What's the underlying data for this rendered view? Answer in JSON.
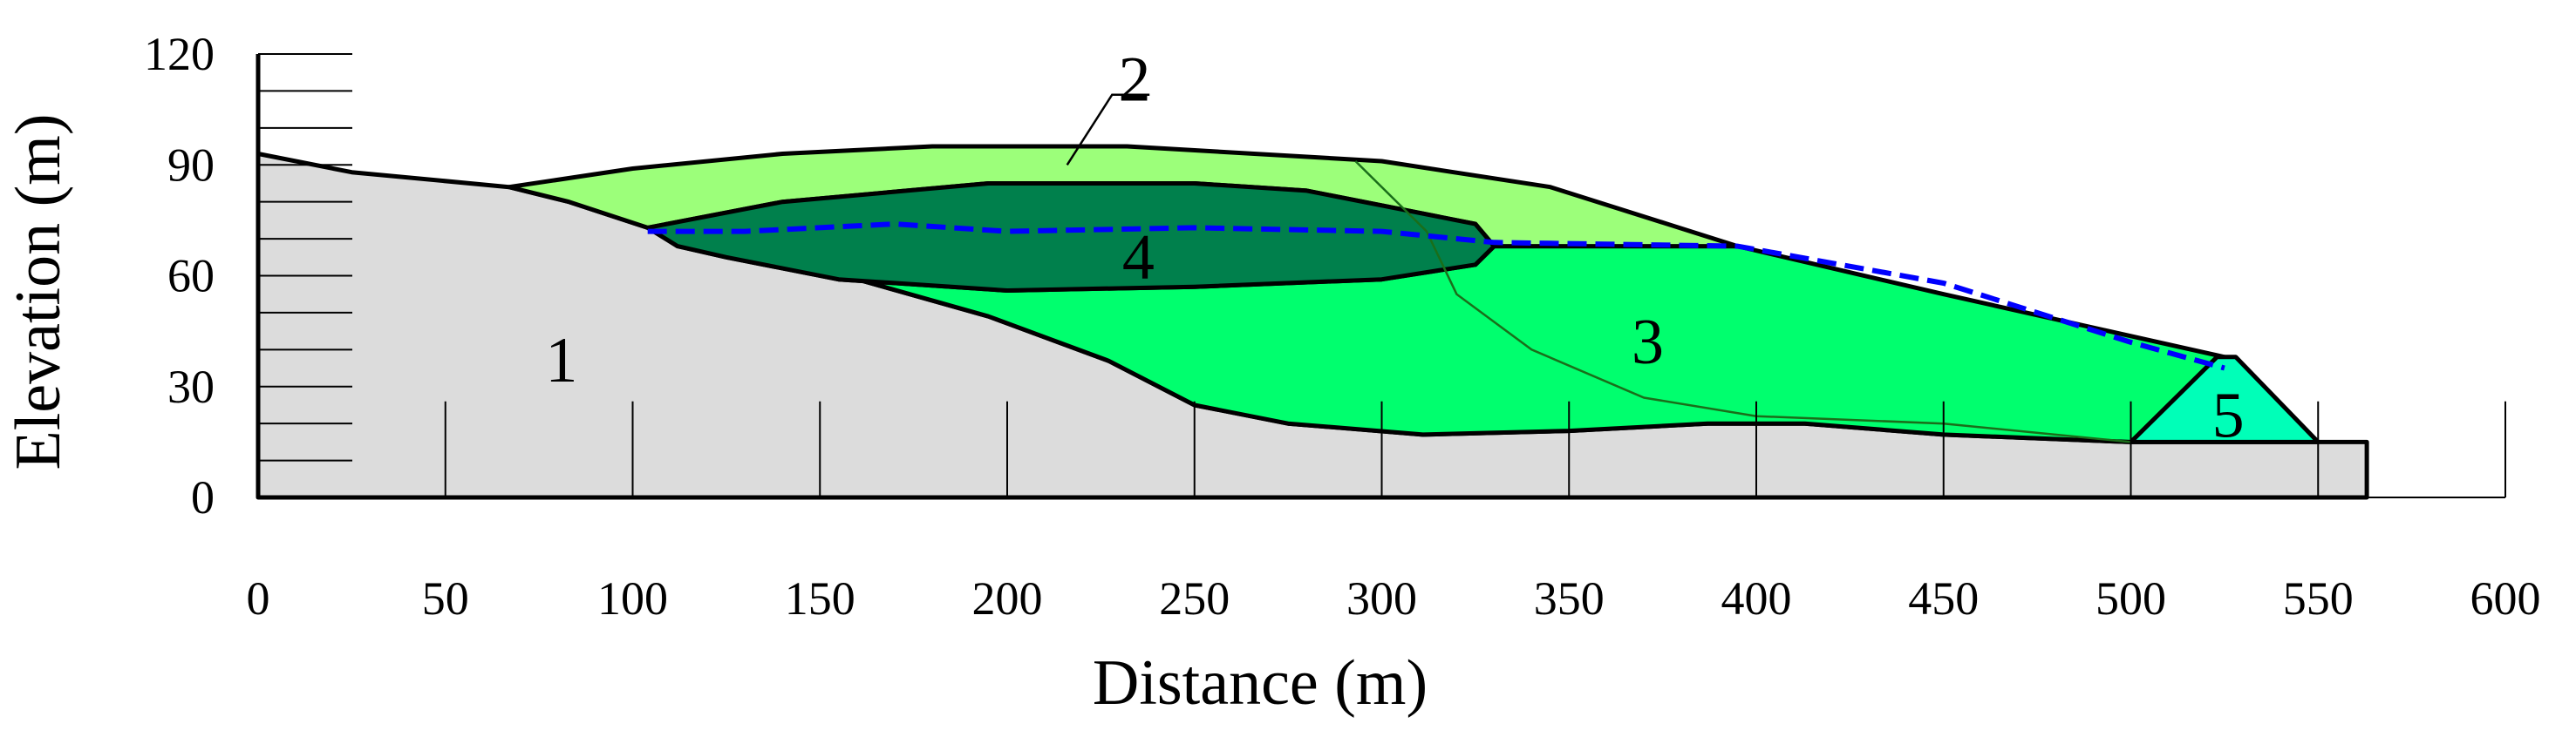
{
  "chart_data": {
    "type": "cross-section",
    "title": "",
    "xlabel": "Distance (m)",
    "ylabel": "Elevation (m)",
    "xlim": [
      0,
      600
    ],
    "ylim": [
      0,
      120
    ],
    "xticks": [
      0,
      50,
      100,
      150,
      200,
      250,
      300,
      350,
      400,
      450,
      500,
      550,
      600
    ],
    "yticks": [
      0,
      30,
      60,
      90,
      120
    ],
    "x_tick_labels": [
      "0",
      "50",
      "100",
      "150",
      "200",
      "250",
      "300",
      "350",
      "400",
      "450",
      "500",
      "550",
      "600"
    ],
    "y_tick_labels": [
      "0",
      "30",
      "60",
      "90",
      "120"
    ],
    "zones": [
      {
        "id": "1",
        "label": "1",
        "color": "#dcdcdc",
        "label_at": [
          81,
          37
        ],
        "outline": [
          [
            0,
            93
          ],
          [
            25,
            88
          ],
          [
            67,
            84
          ],
          [
            83,
            80
          ],
          [
            104,
            73
          ],
          [
            112,
            68
          ],
          [
            127,
            65
          ],
          [
            160,
            59
          ],
          [
            195,
            49
          ],
          [
            227,
            37
          ],
          [
            250,
            25
          ],
          [
            275,
            20
          ],
          [
            311,
            17
          ],
          [
            350,
            18
          ],
          [
            387,
            20
          ],
          [
            413,
            20
          ],
          [
            450,
            17
          ],
          [
            500,
            15
          ],
          [
            525,
            15
          ],
          [
            563,
            15
          ],
          [
            563,
            0
          ],
          [
            0,
            0
          ]
        ]
      },
      {
        "id": "2",
        "label": "2",
        "color": "#9cff7a",
        "label_at": [
          234,
          113
        ],
        "outline": [
          [
            67,
            84
          ],
          [
            83,
            80
          ],
          [
            104,
            73
          ],
          [
            140,
            80
          ],
          [
            195,
            85
          ],
          [
            250,
            85
          ],
          [
            280,
            83
          ],
          [
            305,
            78
          ],
          [
            325,
            74
          ],
          [
            330,
            68
          ],
          [
            395,
            68
          ],
          [
            345,
            84
          ],
          [
            300,
            91
          ],
          [
            232,
            95
          ],
          [
            180,
            95
          ],
          [
            140,
            93
          ],
          [
            100,
            89
          ]
        ]
      },
      {
        "id": "3",
        "label": "3",
        "color": "#00ff6e",
        "label_at": [
          371,
          42
        ],
        "outline": [
          [
            112,
            68
          ],
          [
            127,
            65
          ],
          [
            160,
            59
          ],
          [
            195,
            49
          ],
          [
            227,
            37
          ],
          [
            250,
            25
          ],
          [
            275,
            20
          ],
          [
            311,
            17
          ],
          [
            350,
            18
          ],
          [
            387,
            20
          ],
          [
            413,
            20
          ],
          [
            450,
            17
          ],
          [
            500,
            15
          ],
          [
            525,
            38
          ],
          [
            450,
            55
          ],
          [
            395,
            68
          ],
          [
            330,
            68
          ],
          [
            325,
            63
          ],
          [
            300,
            59
          ],
          [
            250,
            57
          ],
          [
            200,
            56
          ],
          [
            155,
            59
          ],
          [
            125,
            65
          ]
        ]
      },
      {
        "id": "4",
        "label": "4",
        "color": "#00804c",
        "label_at": [
          235,
          65
        ],
        "outline": [
          [
            104,
            73
          ],
          [
            140,
            80
          ],
          [
            195,
            85
          ],
          [
            250,
            85
          ],
          [
            280,
            83
          ],
          [
            305,
            78
          ],
          [
            325,
            74
          ],
          [
            330,
            68
          ],
          [
            325,
            63
          ],
          [
            300,
            59
          ],
          [
            250,
            57
          ],
          [
            200,
            56
          ],
          [
            155,
            59
          ],
          [
            125,
            65
          ],
          [
            112,
            68
          ]
        ]
      },
      {
        "id": "5",
        "label": "5",
        "color": "#00ffb8",
        "label_at": [
          526,
          22
        ],
        "outline": [
          [
            500,
            15
          ],
          [
            550,
            15
          ],
          [
            528,
            38
          ],
          [
            523,
            38
          ]
        ]
      }
    ],
    "phreatic_line": {
      "color": "#0000ff",
      "points": [
        [
          104,
          72
        ],
        [
          130,
          72
        ],
        [
          170,
          74
        ],
        [
          200,
          72
        ],
        [
          250,
          73
        ],
        [
          300,
          72
        ],
        [
          330,
          69
        ],
        [
          395,
          68
        ],
        [
          450,
          58
        ],
        [
          500,
          42
        ],
        [
          525,
          35
        ]
      ]
    },
    "slip_surface": {
      "color": "#1a6e1a",
      "points": [
        [
          293,
          91
        ],
        [
          312,
          72
        ],
        [
          320,
          55
        ],
        [
          340,
          40
        ],
        [
          370,
          27
        ],
        [
          400,
          22
        ],
        [
          450,
          20
        ],
        [
          500,
          15
        ]
      ]
    },
    "ground_ticks": {
      "x": [
        50,
        100,
        150,
        200,
        250,
        300,
        350,
        400,
        450,
        500,
        550,
        600
      ],
      "top_elevation": 26,
      "baseline_end_x": 600
    },
    "label_2_leader": {
      "points": [
        [
          216,
          90
        ],
        [
          228,
          109
        ],
        [
          238,
          109
        ]
      ]
    }
  }
}
